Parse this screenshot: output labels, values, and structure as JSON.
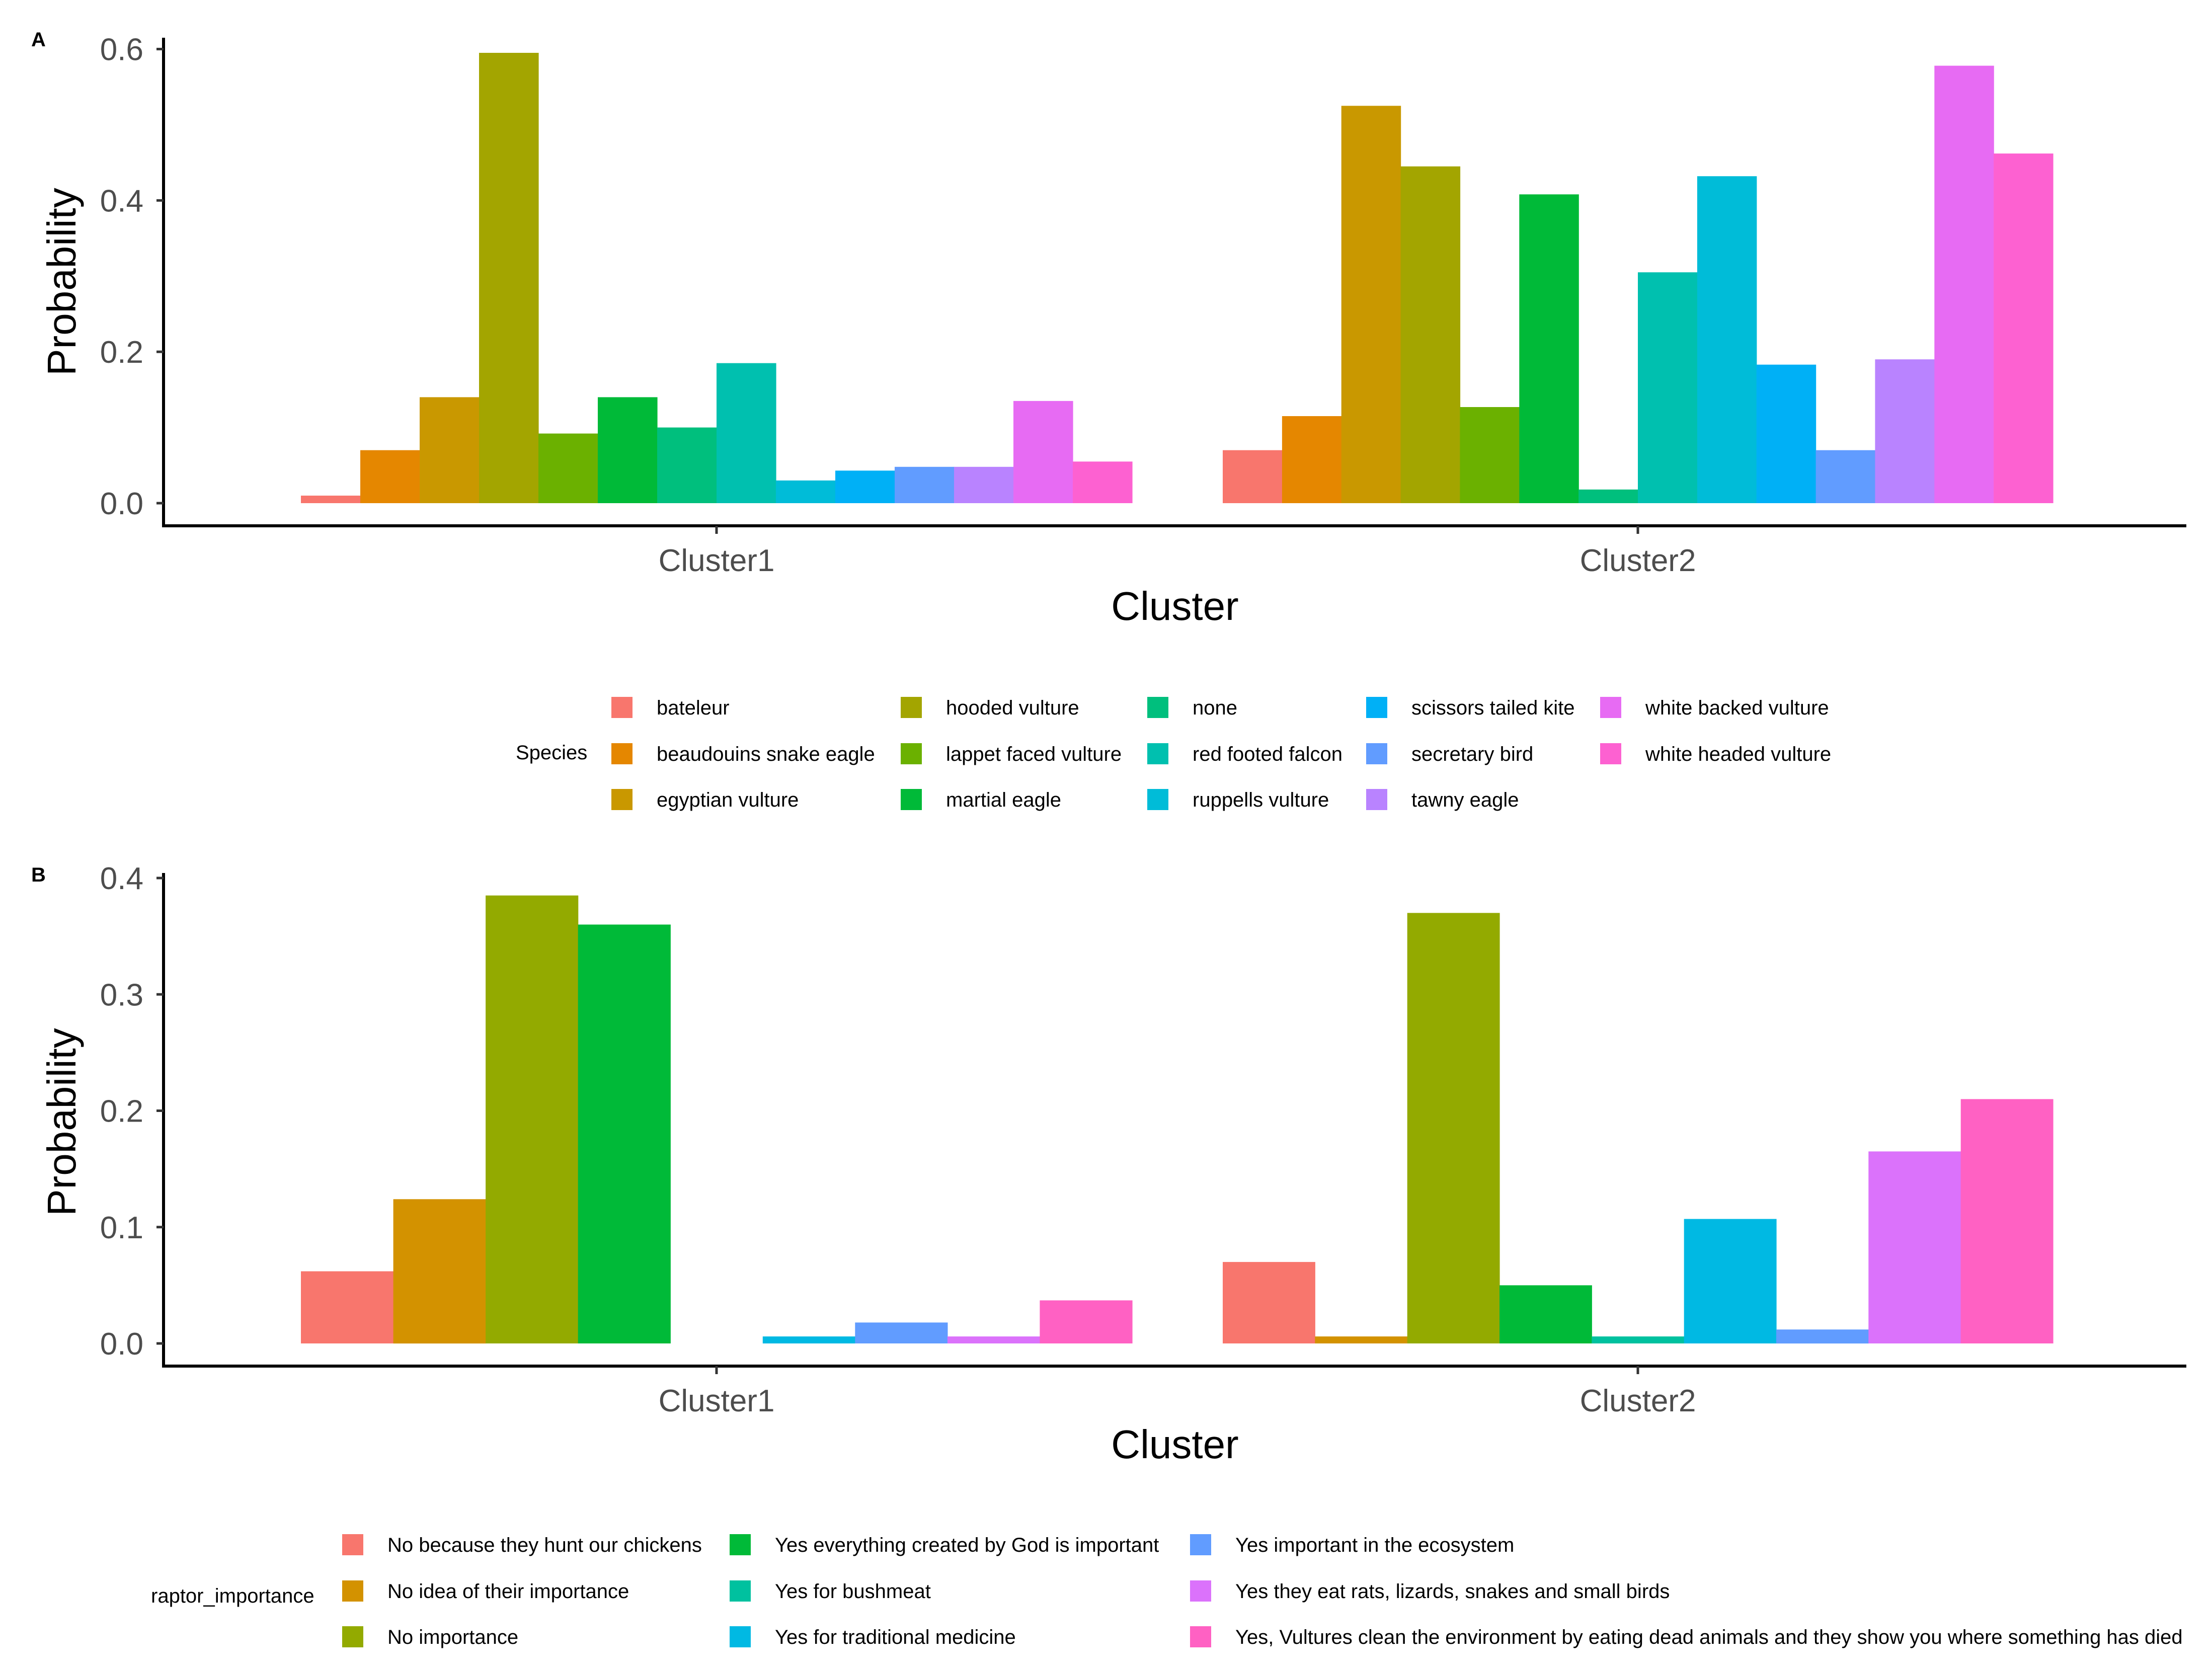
{
  "chart_data": [
    {
      "panel": "A",
      "type": "bar",
      "xlabel": "Cluster",
      "ylabel": "Probability",
      "ylim": [
        0,
        0.62
      ],
      "yticks": [
        "0.0",
        "0.2",
        "0.4",
        "0.6"
      ],
      "ytick_values": [
        0,
        0.2,
        0.4,
        0.6
      ],
      "categories": [
        "Cluster1",
        "Cluster2"
      ],
      "legend_title": "Species",
      "series": [
        {
          "name": "bateleur",
          "color": "#F8766D",
          "values": [
            0.01,
            0.07
          ]
        },
        {
          "name": "beaudouins snake eagle",
          "color": "#E58700",
          "values": [
            0.07,
            0.115
          ]
        },
        {
          "name": "egyptian vulture",
          "color": "#C99800",
          "values": [
            0.14,
            0.525
          ]
        },
        {
          "name": "hooded vulture",
          "color": "#A3A500",
          "values": [
            0.595,
            0.445
          ]
        },
        {
          "name": "lappet faced vulture",
          "color": "#6BB100",
          "values": [
            0.092,
            0.127
          ]
        },
        {
          "name": "martial eagle",
          "color": "#00BA38",
          "values": [
            0.14,
            0.408
          ]
        },
        {
          "name": "none",
          "color": "#00BF7D",
          "values": [
            0.1,
            0.018
          ]
        },
        {
          "name": "red footed falcon",
          "color": "#00C0AF",
          "values": [
            0.185,
            0.305
          ]
        },
        {
          "name": "ruppells vulture",
          "color": "#00BCD8",
          "values": [
            0.03,
            0.432
          ]
        },
        {
          "name": "scissors tailed kite",
          "color": "#00B0F6",
          "values": [
            0.043,
            0.183
          ]
        },
        {
          "name": "secretary bird",
          "color": "#619CFF",
          "values": [
            0.048,
            0.07
          ]
        },
        {
          "name": "tawny eagle",
          "color": "#B983FF",
          "values": [
            0.048,
            0.19
          ]
        },
        {
          "name": "white backed vulture",
          "color": "#E76BF3",
          "values": [
            0.135,
            0.578
          ]
        },
        {
          "name": "white headed vulture",
          "color": "#FD61D1",
          "values": [
            0.055,
            0.462
          ]
        }
      ]
    },
    {
      "panel": "B",
      "type": "bar",
      "xlabel": "Cluster",
      "ylabel": "Probability",
      "ylim": [
        0,
        0.405
      ],
      "yticks": [
        "0.0",
        "0.1",
        "0.2",
        "0.3",
        "0.4"
      ],
      "ytick_values": [
        0,
        0.1,
        0.2,
        0.3,
        0.4
      ],
      "categories": [
        "Cluster1",
        "Cluster2"
      ],
      "legend_title": "raptor_importance",
      "series": [
        {
          "name": "No because they hunt our chickens",
          "color": "#F8766D",
          "values": [
            0.062,
            0.07
          ]
        },
        {
          "name": "No idea of their importance",
          "color": "#D39200",
          "values": [
            0.124,
            0.006
          ]
        },
        {
          "name": "No importance",
          "color": "#93AA00",
          "values": [
            0.385,
            0.37
          ]
        },
        {
          "name": "Yes everything created by God is important",
          "color": "#00BA38",
          "values": [
            0.36,
            0.05
          ]
        },
        {
          "name": "Yes for bushmeat",
          "color": "#00C19F",
          "values": [
            0.0,
            0.006
          ]
        },
        {
          "name": "Yes for traditional medicine",
          "color": "#00B9E3",
          "values": [
            0.006,
            0.107
          ]
        },
        {
          "name": "Yes important in the ecosystem",
          "color": "#619CFF",
          "values": [
            0.018,
            0.012
          ]
        },
        {
          "name": "Yes they eat rats, lizards, snakes and small birds",
          "color": "#DB72FB",
          "values": [
            0.006,
            0.165
          ]
        },
        {
          "name": "Yes, Vultures clean the environment by eating dead animals and they show you where something has died",
          "color": "#FF61C3",
          "values": [
            0.037,
            0.21
          ]
        }
      ]
    }
  ]
}
